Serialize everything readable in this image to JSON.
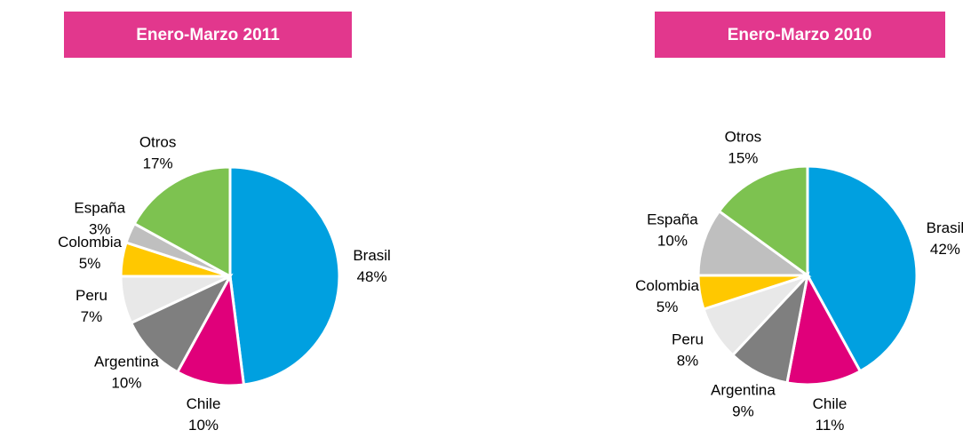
{
  "chart_data": [
    {
      "type": "pie",
      "title": "Enero-Marzo 2011",
      "categories": [
        "Brasil",
        "Chile",
        "Argentina",
        "Peru",
        "Colombia",
        "España",
        "Otros"
      ],
      "values": [
        48,
        10,
        10,
        7,
        5,
        3,
        17
      ],
      "value_labels": [
        "48%",
        "10%",
        "10%",
        "7%",
        "5%",
        "3%",
        "17%"
      ],
      "colors": [
        "#00a0e0",
        "#e0007a",
        "#7f7f7f",
        "#e8e8e8",
        "#ffc800",
        "#bfbfbf",
        "#7dc250"
      ]
    },
    {
      "type": "pie",
      "title": "Enero-Marzo 2010",
      "categories": [
        "Brasil",
        "Chile",
        "Argentina",
        "Peru",
        "Colombia",
        "España",
        "Otros"
      ],
      "values": [
        42,
        11,
        9,
        8,
        5,
        10,
        15
      ],
      "value_labels": [
        "42%",
        "11%",
        "9%",
        "8%",
        "5%",
        "10%",
        "15%"
      ],
      "colors": [
        "#00a0e0",
        "#e0007a",
        "#7f7f7f",
        "#e8e8e8",
        "#ffc800",
        "#bfbfbf",
        "#7dc250"
      ]
    }
  ]
}
